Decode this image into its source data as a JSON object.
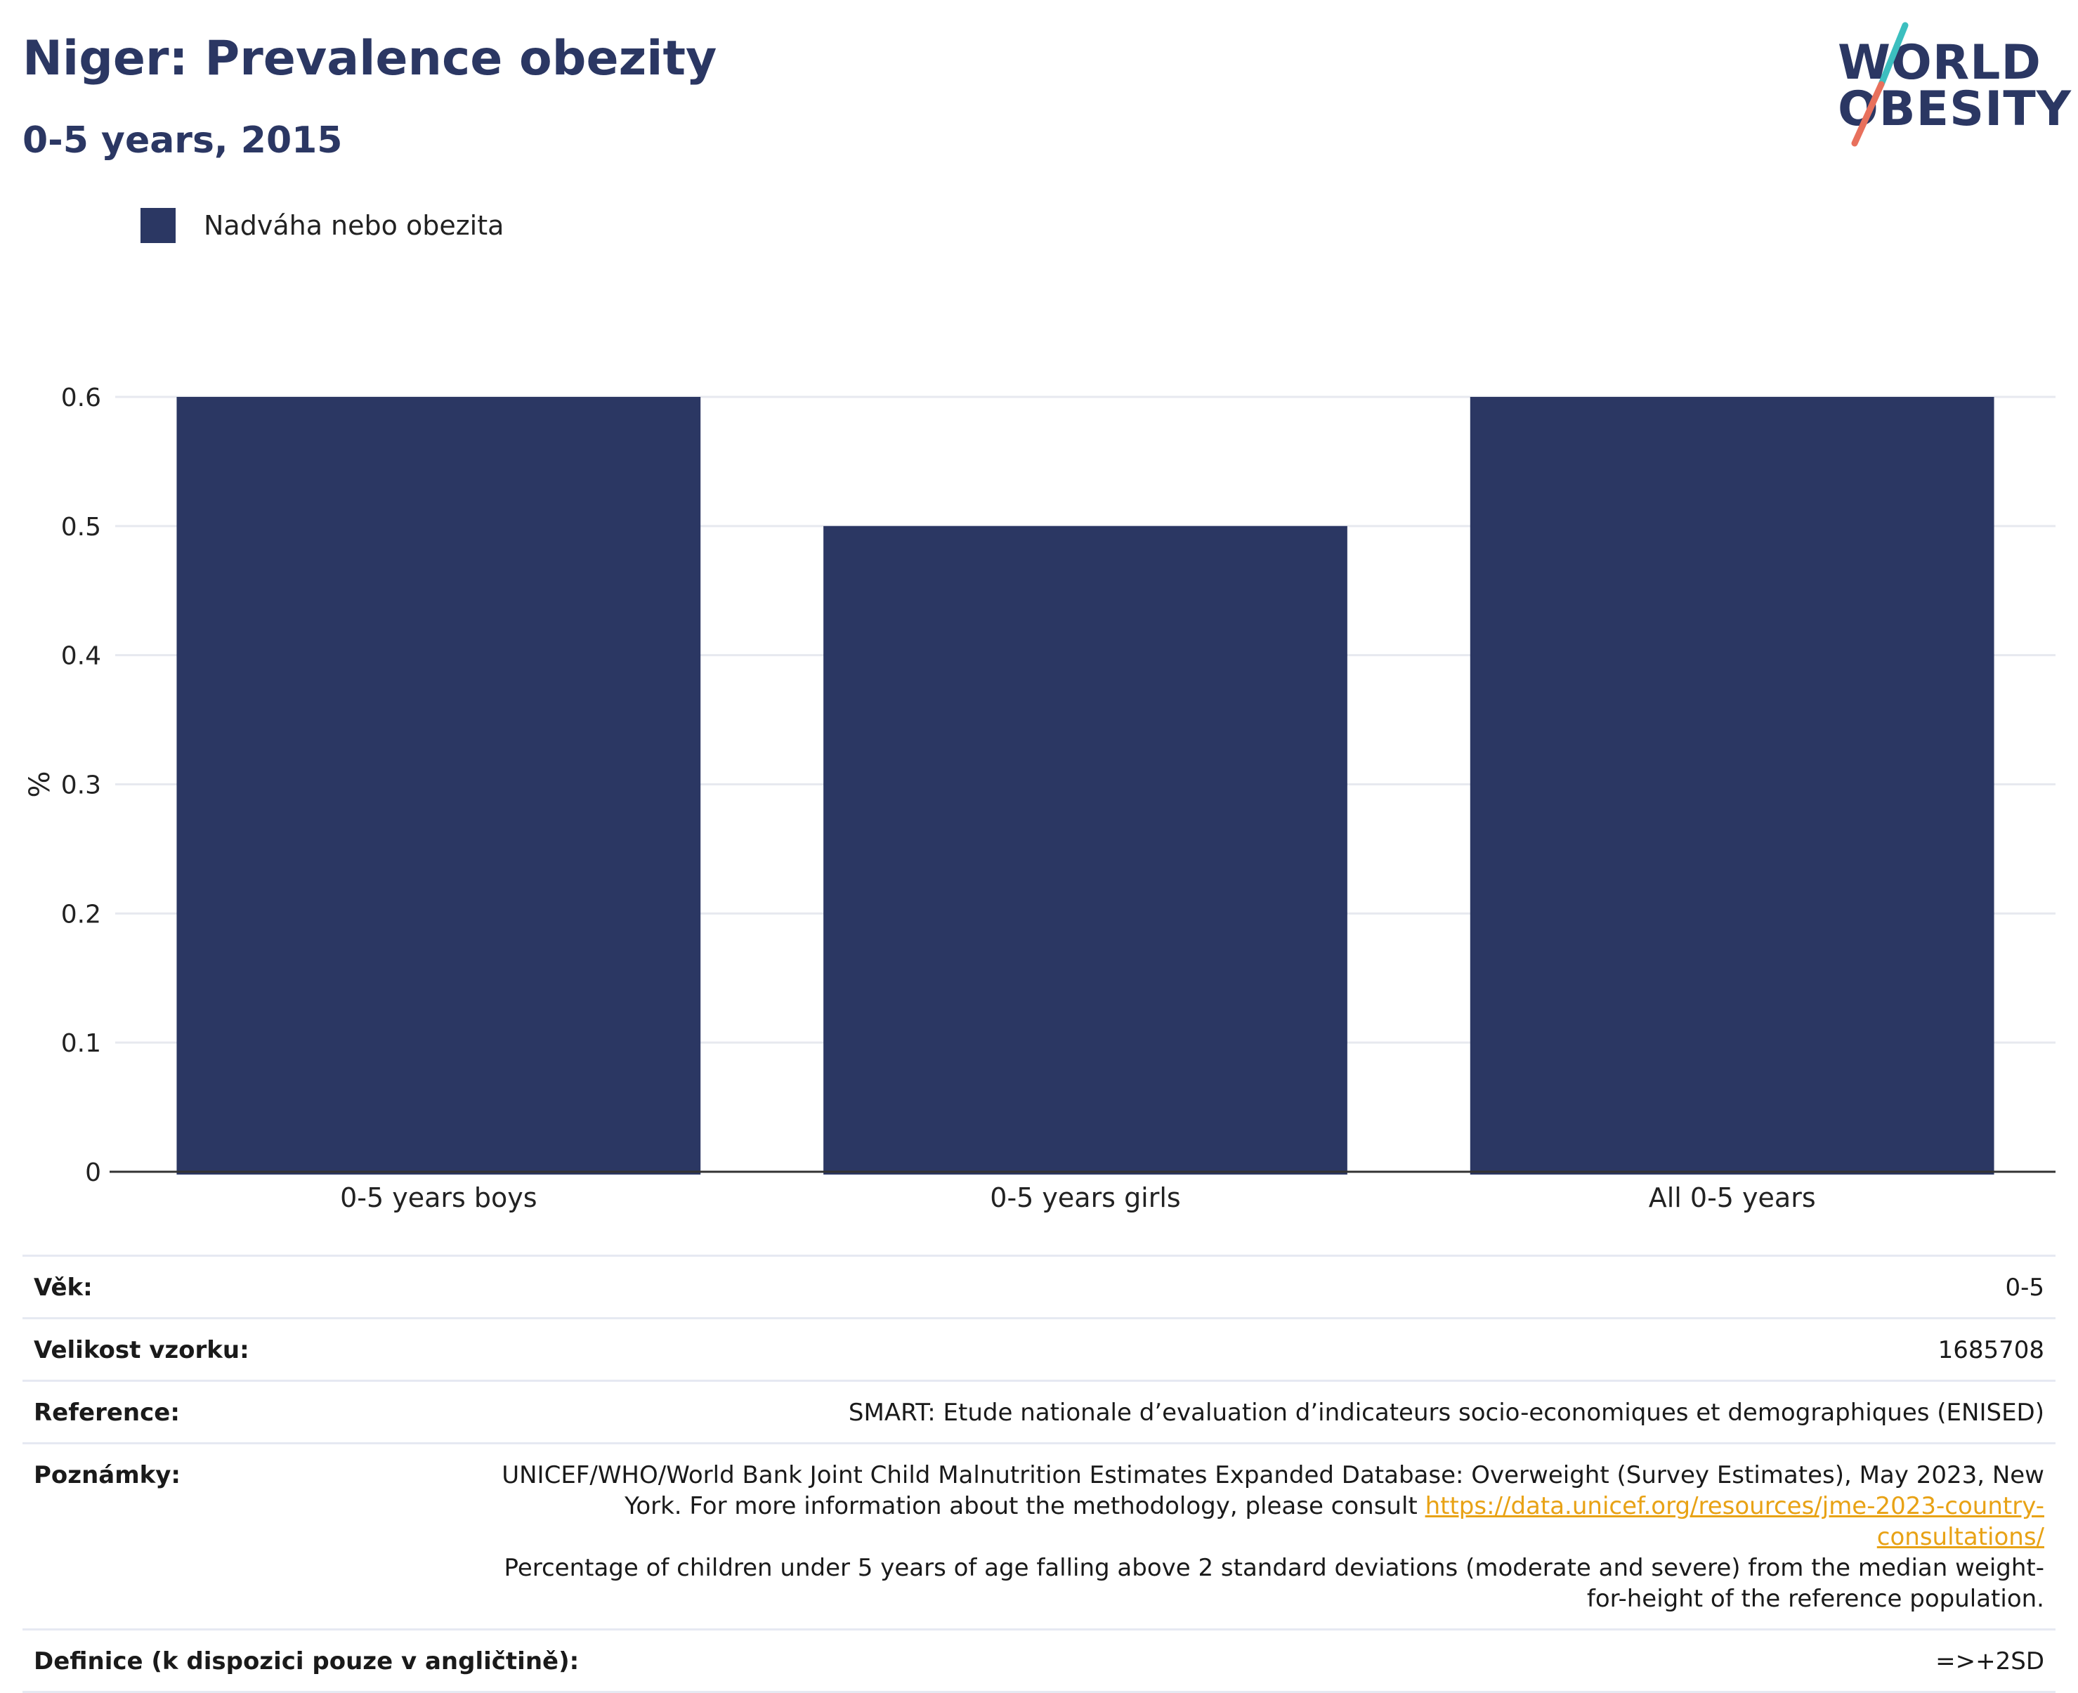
{
  "header": {
    "title": "Niger: Prevalence obezity",
    "subtitle": "0-5 years, 2015"
  },
  "logo": {
    "line1": "WORLD",
    "line2": "OBESITY",
    "accent_colors": [
      "#3cbfbf",
      "#e8705c"
    ]
  },
  "legend": {
    "label": "Nadváha nebo obezita",
    "color": "#2b3763"
  },
  "chart_data": {
    "type": "bar",
    "categories": [
      "0-5 years boys",
      "0-5 years girls",
      "All 0-5 years"
    ],
    "series": [
      {
        "name": "Nadváha nebo obezita",
        "values": [
          0.6,
          0.5,
          0.6
        ],
        "color": "#2b3763"
      }
    ],
    "ylabel": "%",
    "ylim": [
      0,
      0.6
    ],
    "yticks": [
      "0",
      "0.1",
      "0.2",
      "0.3",
      "0.4",
      "0.5",
      "0.6"
    ],
    "grid": true,
    "legend_position": "top-left"
  },
  "info": {
    "age_label": "Věk:",
    "age_value": "0-5",
    "sample_label": "Velikost vzorku:",
    "sample_value": "1685708",
    "reference_label": "Reference:",
    "reference_value": "SMART: Etude nationale d’evaluation d’indicateurs socio-economiques et demographiques (ENISED)",
    "notes_label": "Poznámky:",
    "notes_text1": "UNICEF/WHO/World Bank Joint Child Malnutrition Estimates Expanded Database: Overweight (Survey Estimates), May 2023, New York. For more information about the methodology, please consult",
    "notes_link": "https://data.unicef.org/resources/jme-2023-country-consultations/",
    "notes_text2": "Percentage of children under 5 years of age falling above 2 standard deviations (moderate and severe) from the median weight-for-height of the reference population.",
    "definition_label": "Definice (k dispozici pouze v angličtině):",
    "definition_value": "=>+2SD"
  }
}
